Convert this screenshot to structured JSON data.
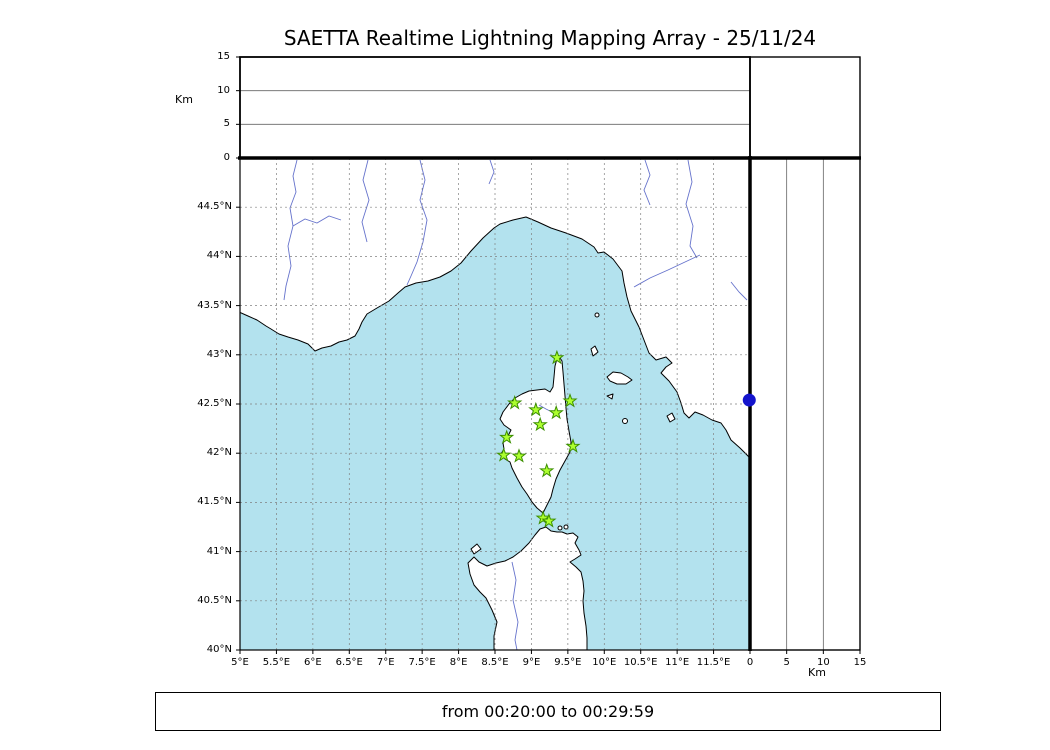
{
  "altitude_axis": {
    "label": "Km",
    "range_km": [
      0,
      15
    ],
    "ticks": [
      {
        "value": 0,
        "label": "0"
      },
      {
        "value": 5,
        "label": "5"
      },
      {
        "value": 10,
        "label": "10"
      },
      {
        "value": 15,
        "label": "15"
      }
    ]
  },
  "map": {
    "lon_ticks": [
      {
        "value": 5,
        "label": "5°E"
      },
      {
        "value": 5.5,
        "label": "5.5°E"
      },
      {
        "value": 6,
        "label": "6°E"
      },
      {
        "value": 6.5,
        "label": "6.5°E"
      },
      {
        "value": 7,
        "label": "7°E"
      },
      {
        "value": 7.5,
        "label": "7.5°E"
      },
      {
        "value": 8,
        "label": "8°E"
      },
      {
        "value": 8.5,
        "label": "8.5°E"
      },
      {
        "value": 9,
        "label": "9°E"
      },
      {
        "value": 9.5,
        "label": "9.5°E"
      },
      {
        "value": 10,
        "label": "10°E"
      },
      {
        "value": 10.5,
        "label": "10.5°E"
      },
      {
        "value": 11,
        "label": "11°E"
      },
      {
        "value": 11.5,
        "label": "11.5°E"
      }
    ],
    "lat_ticks": [
      {
        "value": 44.5,
        "label": "44.5°N"
      },
      {
        "value": 44,
        "label": "44°N"
      },
      {
        "value": 43.5,
        "label": "43.5°N"
      },
      {
        "value": 43,
        "label": "43°N"
      },
      {
        "value": 42.5,
        "label": "42.5°N"
      },
      {
        "value": 42,
        "label": "42°N"
      },
      {
        "value": 41.5,
        "label": "41.5°N"
      },
      {
        "value": 41,
        "label": "41°N"
      },
      {
        "value": 40.5,
        "label": "40.5°N"
      },
      {
        "value": 40,
        "label": "40°N"
      }
    ]
  },
  "chart_data": {
    "type": "scatter",
    "title": "SAETTA Realtime Lightning Mapping Array - 25/11/24",
    "time_window": "from 00:20:00 to 00:29:59",
    "xlim_lon_e": [
      5,
      12
    ],
    "ylim_lat_n": [
      40,
      45
    ],
    "altitude_panel_km": [
      0,
      15
    ],
    "grid": true,
    "legend": false,
    "series": [
      {
        "name": "lma-station-markers",
        "marker": "star",
        "points": [
          {
            "lon": 9.35,
            "lat": 42.97
          },
          {
            "lon": 8.77,
            "lat": 42.51
          },
          {
            "lon": 9.06,
            "lat": 42.44
          },
          {
            "lon": 9.34,
            "lat": 42.41
          },
          {
            "lon": 9.53,
            "lat": 42.53
          },
          {
            "lon": 9.12,
            "lat": 42.29
          },
          {
            "lon": 8.66,
            "lat": 42.16
          },
          {
            "lon": 9.57,
            "lat": 42.07
          },
          {
            "lon": 8.62,
            "lat": 41.98
          },
          {
            "lon": 8.83,
            "lat": 41.97
          },
          {
            "lon": 9.21,
            "lat": 41.82
          },
          {
            "lon": 9.16,
            "lat": 41.34
          },
          {
            "lon": 9.24,
            "lat": 41.31
          }
        ]
      },
      {
        "name": "recent-source-dot",
        "marker": "circle",
        "points": [
          {
            "lon": 11.99,
            "lat": 42.54
          }
        ]
      }
    ]
  },
  "colors": {
    "sea": "#b3e2ee",
    "land": "#ffffff",
    "coast": "#000000",
    "river": "#6673cc",
    "grid": "#808080",
    "station_fill": "#adff2f",
    "station_edge": "#3c8f00",
    "source_dot": "#1414cc"
  }
}
